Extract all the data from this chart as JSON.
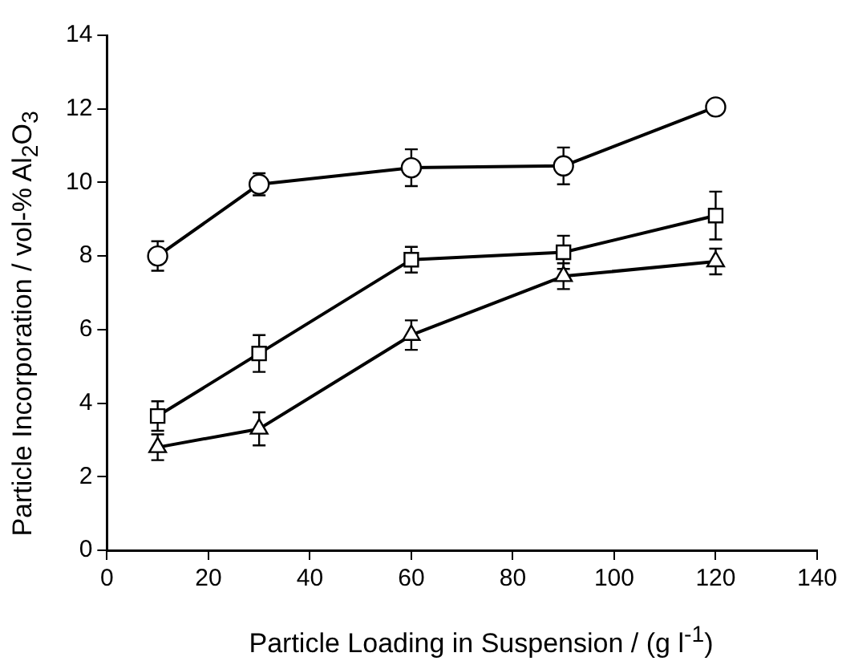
{
  "chart_data": {
    "type": "line",
    "xlabel": "Particle Loading in Suspension / (g l$^{-1}$)",
    "ylabel": "Particle Incorporation / vol-% Al$_{2}$O$_{3}$",
    "xlim": [
      0,
      140
    ],
    "xticks": [
      0,
      20,
      40,
      60,
      80,
      100,
      120,
      140
    ],
    "ylim": [
      0,
      14
    ],
    "yticks": [
      0,
      2,
      4,
      6,
      8,
      10,
      12,
      14
    ],
    "grid": false,
    "legend": false,
    "line_style": "solid",
    "series": [
      {
        "color": "#000000",
        "marker": "circle",
        "x": [
          10,
          30,
          60,
          90,
          120
        ],
        "values": [
          8.0,
          9.95,
          10.4,
          10.45,
          12.05
        ],
        "errors": [
          0.4,
          0.3,
          0.5,
          0.5,
          0.2
        ]
      },
      {
        "color": "#000000",
        "marker": "square",
        "x": [
          10,
          30,
          60,
          90,
          120
        ],
        "values": [
          3.65,
          5.35,
          7.9,
          8.1,
          9.1
        ],
        "errors": [
          0.4,
          0.5,
          0.35,
          0.45,
          0.65
        ]
      },
      {
        "color": "#000000",
        "marker": "triangle",
        "x": [
          10,
          30,
          60,
          90,
          120
        ],
        "values": [
          2.8,
          3.3,
          5.85,
          7.45,
          7.85
        ],
        "errors": [
          0.35,
          0.45,
          0.4,
          0.35,
          0.35
        ]
      }
    ]
  }
}
